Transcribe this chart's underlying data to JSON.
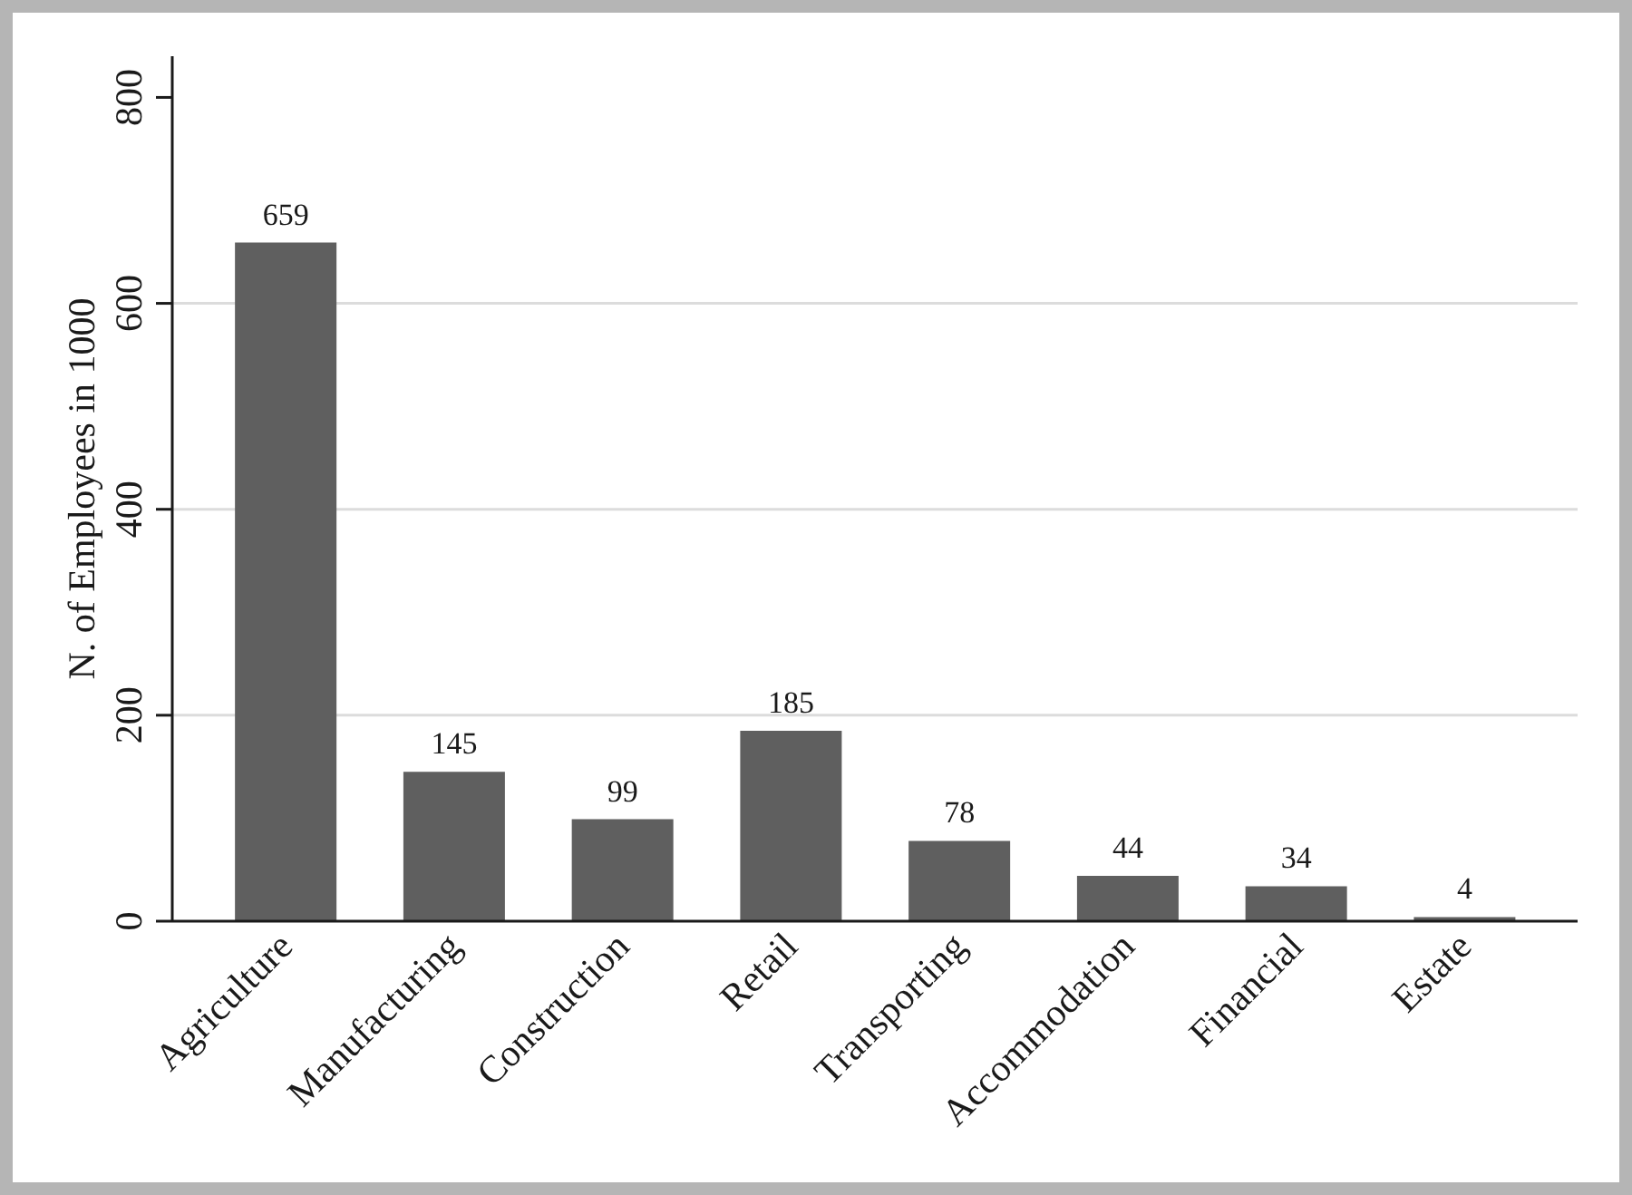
{
  "chart_data": {
    "type": "bar",
    "categories": [
      "Agriculture",
      "Manufacturing",
      "Construction",
      "Retail",
      "Transporting",
      "Accommodation",
      "Financial",
      "Estate"
    ],
    "values": [
      659,
      145,
      99,
      185,
      78,
      44,
      34,
      4
    ],
    "color": "#5f5f5f",
    "ylabel": "N. of Employees in 1000",
    "ylim": [
      0,
      840
    ],
    "yticks": [
      0,
      200,
      400,
      600,
      800
    ],
    "grid": "y",
    "data_labels": true
  }
}
